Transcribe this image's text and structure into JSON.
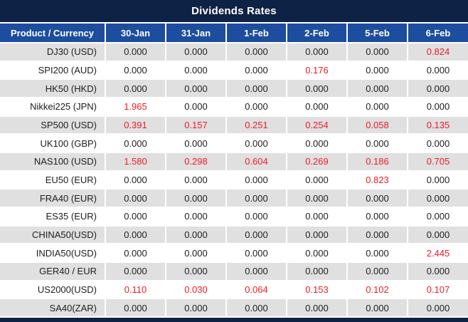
{
  "title": "Dividends Rates",
  "table": {
    "product_header": "Product / Currency",
    "columns": [
      "30-Jan",
      "31-Jan",
      "1-Feb",
      "2-Feb",
      "5-Feb",
      "6-Feb"
    ],
    "rows": [
      {
        "product": "DJ30 (USD)",
        "values": [
          "0.000",
          "0.000",
          "0.000",
          "0.000",
          "0.000",
          "0.824"
        ],
        "red": [
          false,
          false,
          false,
          false,
          false,
          true
        ]
      },
      {
        "product": "SPI200 (AUD)",
        "values": [
          "0.000",
          "0.000",
          "0.000",
          "0.176",
          "0.000",
          "0.000"
        ],
        "red": [
          false,
          false,
          false,
          true,
          false,
          false
        ]
      },
      {
        "product": "HK50 (HKD)",
        "values": [
          "0.000",
          "0.000",
          "0.000",
          "0.000",
          "0.000",
          "0.000"
        ],
        "red": [
          false,
          false,
          false,
          false,
          false,
          false
        ]
      },
      {
        "product": "Nikkei225 (JPN)",
        "values": [
          "1.965",
          "0.000",
          "0.000",
          "0.000",
          "0.000",
          "0.000"
        ],
        "red": [
          true,
          false,
          false,
          false,
          false,
          false
        ]
      },
      {
        "product": "SP500 (USD)",
        "values": [
          "0.391",
          "0.157",
          "0.251",
          "0.254",
          "0.058",
          "0.135"
        ],
        "red": [
          true,
          true,
          true,
          true,
          true,
          true
        ]
      },
      {
        "product": "UK100 (GBP)",
        "values": [
          "0.000",
          "0.000",
          "0.000",
          "0.000",
          "0.000",
          "0.000"
        ],
        "red": [
          false,
          false,
          false,
          false,
          false,
          false
        ]
      },
      {
        "product": "NAS100 (USD)",
        "values": [
          "1.580",
          "0.298",
          "0.604",
          "0.269",
          "0.186",
          "0.705"
        ],
        "red": [
          true,
          true,
          true,
          true,
          true,
          true
        ]
      },
      {
        "product": "EU50 (EUR)",
        "values": [
          "0.000",
          "0.000",
          "0.000",
          "0.000",
          "0.823",
          "0.000"
        ],
        "red": [
          false,
          false,
          false,
          false,
          true,
          false
        ]
      },
      {
        "product": "FRA40 (EUR)",
        "values": [
          "0.000",
          "0.000",
          "0.000",
          "0.000",
          "0.000",
          "0.000"
        ],
        "red": [
          false,
          false,
          false,
          false,
          false,
          false
        ]
      },
      {
        "product": "ES35 (EUR)",
        "values": [
          "0.000",
          "0.000",
          "0.000",
          "0.000",
          "0.000",
          "0.000"
        ],
        "red": [
          false,
          false,
          false,
          false,
          false,
          false
        ]
      },
      {
        "product": "CHINA50(USD)",
        "values": [
          "0.000",
          "0.000",
          "0.000",
          "0.000",
          "0.000",
          "0.000"
        ],
        "red": [
          false,
          false,
          false,
          false,
          false,
          false
        ]
      },
      {
        "product": "INDIA50(USD)",
        "values": [
          "0.000",
          "0.000",
          "0.000",
          "0.000",
          "0.000",
          "2.445"
        ],
        "red": [
          false,
          false,
          false,
          false,
          false,
          true
        ]
      },
      {
        "product": "GER40 / EUR",
        "values": [
          "0.000",
          "0.000",
          "0.000",
          "0.000",
          "0.000",
          "0.000"
        ],
        "red": [
          false,
          false,
          false,
          false,
          false,
          false
        ]
      },
      {
        "product": "US2000(USD)",
        "values": [
          "0.110",
          "0.030",
          "0.064",
          "0.153",
          "0.102",
          "0.107"
        ],
        "red": [
          true,
          true,
          true,
          true,
          true,
          true
        ]
      },
      {
        "product": "SA40(ZAR)",
        "values": [
          "0.000",
          "0.000",
          "0.000",
          "0.000",
          "0.000",
          "0.000"
        ],
        "red": [
          false,
          false,
          false,
          false,
          false,
          false
        ]
      }
    ]
  },
  "colors": {
    "navy": "#0d2244",
    "header_blue": "#1d4d9e",
    "row_gray": "#e0e0e0",
    "value_red": "#ee1c25",
    "value_black": "#202020"
  }
}
